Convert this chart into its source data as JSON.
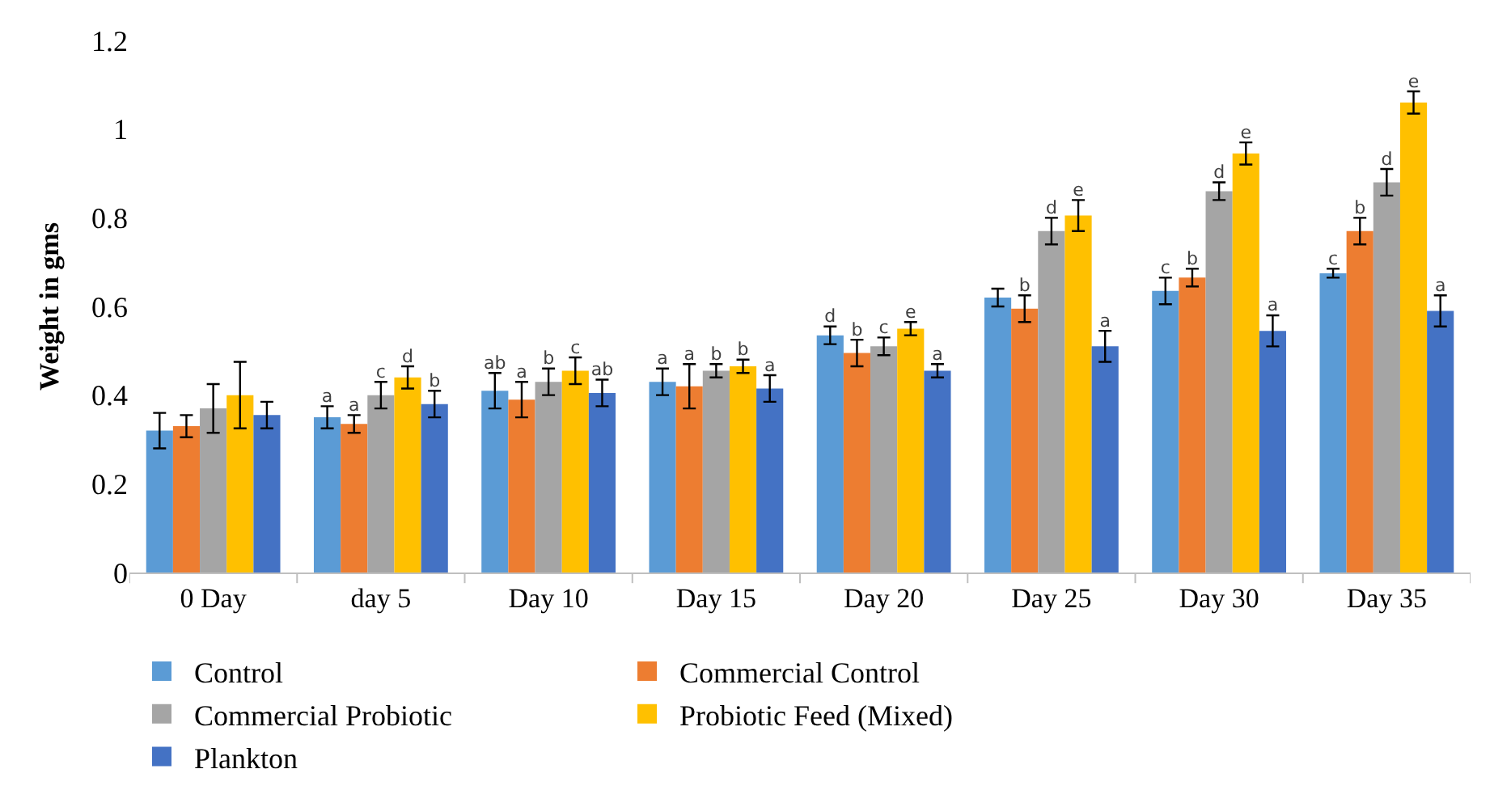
{
  "chart_data": {
    "type": "bar",
    "ylabel": "Weight in gms",
    "categories": [
      "0 Day",
      "day 5",
      "Day 10",
      "Day 15",
      "Day 20",
      "Day 25",
      "Day 30",
      "Day 35"
    ],
    "ylim": [
      0,
      1.2
    ],
    "yticks": [
      0,
      0.2,
      0.4,
      0.6,
      0.8,
      1,
      1.2
    ],
    "legend": "bottom",
    "series": [
      {
        "name": "Control",
        "color": "#5b9bd5",
        "values": [
          0.32,
          0.35,
          0.41,
          0.43,
          0.535,
          0.62,
          0.635,
          0.675
        ],
        "errors": [
          0.04,
          0.025,
          0.04,
          0.03,
          0.02,
          0.02,
          0.03,
          0.01
        ],
        "value_labels": [
          null,
          "a",
          "ab",
          "a",
          "d",
          null,
          "c",
          "c"
        ]
      },
      {
        "name": "Commercial Control",
        "color": "#ed7d31",
        "values": [
          0.33,
          0.335,
          0.39,
          0.42,
          0.495,
          0.595,
          0.665,
          0.77
        ],
        "errors": [
          0.025,
          0.02,
          0.04,
          0.05,
          0.03,
          0.03,
          0.02,
          0.03
        ],
        "value_labels": [
          null,
          "a",
          "a",
          "a",
          "b",
          "b",
          "b",
          "b"
        ]
      },
      {
        "name": "Commercial Probiotic",
        "color": "#a5a5a5",
        "values": [
          0.37,
          0.4,
          0.43,
          0.455,
          0.51,
          0.77,
          0.86,
          0.88
        ],
        "errors": [
          0.055,
          0.03,
          0.03,
          0.015,
          0.02,
          0.03,
          0.02,
          0.03
        ],
        "value_labels": [
          null,
          "c",
          "b",
          "b",
          "c",
          "d",
          "d",
          "d"
        ]
      },
      {
        "name": "Probiotic Feed (Mixed)",
        "color": "#ffc000",
        "values": [
          0.4,
          0.44,
          0.455,
          0.465,
          0.55,
          0.805,
          0.945,
          1.06
        ],
        "errors": [
          0.075,
          0.025,
          0.03,
          0.015,
          0.015,
          0.035,
          0.025,
          0.025
        ],
        "value_labels": [
          null,
          "d",
          "c",
          "b",
          "e",
          "e",
          "e",
          "e"
        ]
      },
      {
        "name": "Plankton",
        "color": "#4472c4",
        "values": [
          0.355,
          0.38,
          0.405,
          0.415,
          0.455,
          0.51,
          0.545,
          0.59
        ],
        "errors": [
          0.03,
          0.03,
          0.03,
          0.03,
          0.015,
          0.035,
          0.035,
          0.035
        ],
        "value_labels": [
          null,
          "b",
          "ab",
          "a",
          "a",
          "a",
          "a",
          "a"
        ]
      }
    ]
  }
}
